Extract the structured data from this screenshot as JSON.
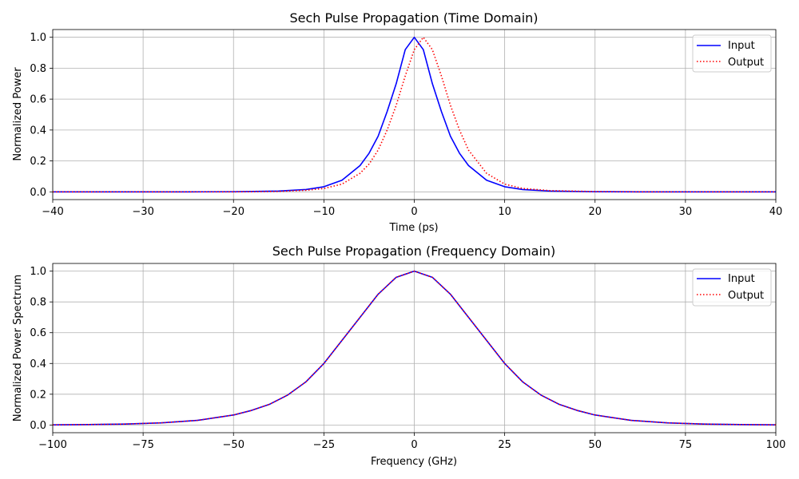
{
  "colors": {
    "input": "#0000ff",
    "output": "#ff0000",
    "grid": "#b0b0b0",
    "axes": "#000000",
    "background": "#ffffff"
  },
  "chart_data": [
    {
      "type": "line",
      "title": "Sech Pulse Propagation (Time Domain)",
      "xlabel": "Time (ps)",
      "ylabel": "Normalized Power",
      "xlim": [
        -40,
        40
      ],
      "ylim": [
        -0.05,
        1.05
      ],
      "xticks": [
        -40,
        -30,
        -20,
        -10,
        0,
        10,
        20,
        30,
        40
      ],
      "yticks": [
        0.0,
        0.2,
        0.4,
        0.6,
        0.8,
        1.0
      ],
      "xtick_labels": [
        "−40",
        "−30",
        "−20",
        "−10",
        "0",
        "10",
        "20",
        "30",
        "40"
      ],
      "ytick_labels": [
        "0.0",
        "0.2",
        "0.4",
        "0.6",
        "0.8",
        "1.0"
      ],
      "grid": true,
      "legend": "upper right",
      "series": [
        {
          "name": "Input",
          "style": "solid",
          "x": [
            -40,
            -25,
            -20,
            -15,
            -12,
            -10,
            -8,
            -6,
            -5,
            -4,
            -3,
            -2,
            -1,
            0,
            1,
            2,
            3,
            4,
            5,
            6,
            8,
            10,
            12,
            15,
            20,
            25,
            40
          ],
          "y": [
            0.0,
            0.0,
            0.001,
            0.005,
            0.015,
            0.033,
            0.075,
            0.17,
            0.25,
            0.36,
            0.52,
            0.7,
            0.92,
            1.0,
            0.92,
            0.7,
            0.52,
            0.36,
            0.25,
            0.17,
            0.075,
            0.033,
            0.015,
            0.005,
            0.001,
            0.0,
            0.0
          ]
        },
        {
          "name": "Output",
          "style": "dotted",
          "x": [
            -40,
            -25,
            -20,
            -15,
            -12,
            -10,
            -8,
            -6,
            -5,
            -4,
            -3,
            -2,
            -1,
            0,
            1,
            2,
            3,
            4,
            5,
            6,
            8,
            10,
            12,
            15,
            20,
            25,
            40
          ],
          "y": [
            0.0,
            0.0,
            0.0,
            0.003,
            0.01,
            0.022,
            0.05,
            0.12,
            0.18,
            0.27,
            0.4,
            0.56,
            0.75,
            0.92,
            1.0,
            0.92,
            0.75,
            0.56,
            0.4,
            0.27,
            0.12,
            0.05,
            0.022,
            0.008,
            0.002,
            0.0,
            0.0
          ]
        }
      ]
    },
    {
      "type": "line",
      "title": "Sech Pulse Propagation (Frequency Domain)",
      "xlabel": "Frequency (GHz)",
      "ylabel": "Normalized Power Spectrum",
      "xlim": [
        -100,
        100
      ],
      "ylim": [
        -0.05,
        1.05
      ],
      "xticks": [
        -100,
        -75,
        -50,
        -25,
        0,
        25,
        50,
        75,
        100
      ],
      "yticks": [
        0.0,
        0.2,
        0.4,
        0.6,
        0.8,
        1.0
      ],
      "xtick_labels": [
        "−100",
        "−75",
        "−50",
        "−25",
        "0",
        "25",
        "50",
        "75",
        "100"
      ],
      "ytick_labels": [
        "0.0",
        "0.2",
        "0.4",
        "0.6",
        "0.8",
        "1.0"
      ],
      "grid": true,
      "legend": "upper right",
      "series": [
        {
          "name": "Input",
          "style": "solid",
          "x": [
            -100,
            -90,
            -80,
            -75,
            -70,
            -60,
            -50,
            -45,
            -40,
            -35,
            -30,
            -25,
            -20,
            -15,
            -10,
            -5,
            0,
            5,
            10,
            15,
            20,
            25,
            30,
            35,
            40,
            45,
            50,
            60,
            70,
            75,
            80,
            90,
            100
          ],
          "y": [
            0.001,
            0.003,
            0.006,
            0.01,
            0.014,
            0.03,
            0.065,
            0.095,
            0.135,
            0.195,
            0.28,
            0.4,
            0.55,
            0.7,
            0.85,
            0.96,
            1.0,
            0.96,
            0.85,
            0.7,
            0.55,
            0.4,
            0.28,
            0.195,
            0.135,
            0.095,
            0.065,
            0.03,
            0.014,
            0.01,
            0.006,
            0.003,
            0.001
          ]
        },
        {
          "name": "Output",
          "style": "dotted",
          "x": [
            -100,
            -90,
            -80,
            -75,
            -70,
            -60,
            -50,
            -45,
            -40,
            -35,
            -30,
            -25,
            -20,
            -15,
            -10,
            -5,
            0,
            5,
            10,
            15,
            20,
            25,
            30,
            35,
            40,
            45,
            50,
            60,
            70,
            75,
            80,
            90,
            100
          ],
          "y": [
            0.001,
            0.003,
            0.006,
            0.01,
            0.014,
            0.03,
            0.065,
            0.095,
            0.135,
            0.195,
            0.28,
            0.4,
            0.55,
            0.7,
            0.85,
            0.96,
            1.0,
            0.96,
            0.85,
            0.7,
            0.55,
            0.4,
            0.28,
            0.195,
            0.135,
            0.095,
            0.065,
            0.03,
            0.014,
            0.01,
            0.006,
            0.003,
            0.001
          ]
        }
      ]
    }
  ]
}
